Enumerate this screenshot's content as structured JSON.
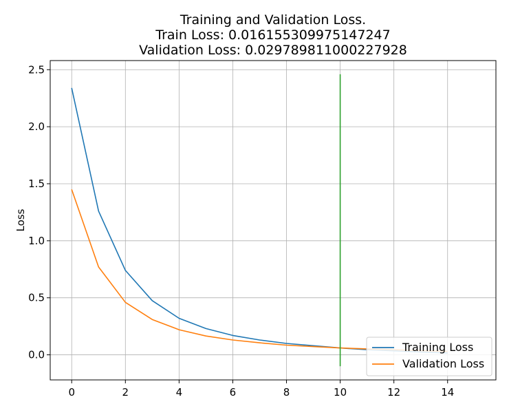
{
  "chart_data": {
    "type": "line",
    "title_lines": [
      "Training and Validation Loss.",
      "Train Loss: 0.016155309975147247",
      "Validation Loss: 0.029789811000227928"
    ],
    "xlabel": "",
    "ylabel": "Loss",
    "xlim": [
      -0.8,
      15.8
    ],
    "ylim": [
      -0.22,
      2.58
    ],
    "xticks": [
      0,
      2,
      4,
      6,
      8,
      10,
      12,
      14
    ],
    "yticks": [
      0.0,
      0.5,
      1.0,
      1.5,
      2.0,
      2.5
    ],
    "ytick_labels": [
      "0.0",
      "0.5",
      "1.0",
      "1.5",
      "2.0",
      "2.5"
    ],
    "grid": true,
    "legend_position": "lower-right",
    "series": [
      {
        "name": "Training Loss",
        "color": "#1f77b4",
        "x": [
          0,
          1,
          2,
          3,
          4,
          5,
          6,
          7,
          8,
          9,
          10,
          11,
          12,
          13,
          14
        ],
        "values": [
          2.34,
          1.26,
          0.74,
          0.475,
          0.32,
          0.23,
          0.17,
          0.13,
          0.1,
          0.08,
          0.06,
          0.045,
          0.035,
          0.025,
          0.016
        ]
      },
      {
        "name": "Validation Loss",
        "color": "#ff7f0e",
        "x": [
          0,
          1,
          2,
          3,
          4,
          5,
          6,
          7,
          8,
          9,
          10,
          11,
          12,
          13,
          14
        ],
        "values": [
          1.45,
          0.77,
          0.46,
          0.31,
          0.22,
          0.165,
          0.13,
          0.105,
          0.085,
          0.072,
          0.06,
          0.052,
          0.045,
          0.037,
          0.03
        ]
      }
    ],
    "vline": {
      "x": 10,
      "y_range": [
        -0.1,
        2.46
      ],
      "color": "#2ca02c"
    }
  }
}
